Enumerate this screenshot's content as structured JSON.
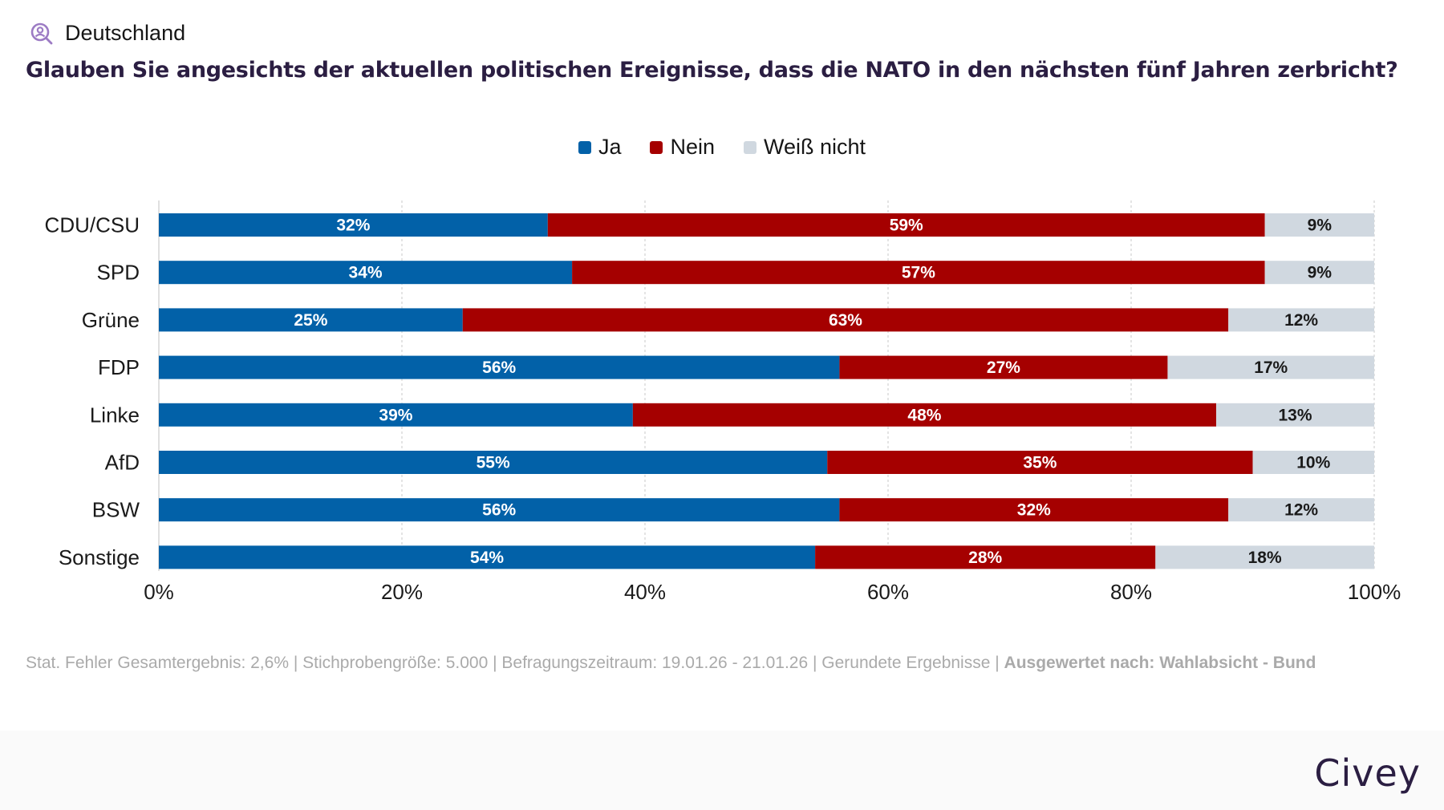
{
  "header": {
    "region_label": "Deutschland",
    "region_icon": "user-search-icon",
    "question": "Glauben Sie angesichts der aktuellen politischen Ereignisse, dass die NATO in den nächsten fünf Jahren zerbricht?"
  },
  "legend": [
    {
      "label": "Ja",
      "color": "#0261a8"
    },
    {
      "label": "Nein",
      "color": "#a50000"
    },
    {
      "label": "Weiß nicht",
      "color": "#d0d8e0"
    }
  ],
  "chart_data": {
    "type": "bar",
    "orientation": "horizontal",
    "stacked": true,
    "title": "Glauben Sie angesichts der aktuellen politischen Ereignisse, dass die NATO in den nächsten fünf Jahren zerbricht?",
    "xlabel": "",
    "ylabel": "",
    "categories": [
      "CDU/CSU",
      "SPD",
      "Grüne",
      "FDP",
      "Linke",
      "AfD",
      "BSW",
      "Sonstige"
    ],
    "series": [
      {
        "name": "Ja",
        "color": "#0261a8",
        "label_color": "#ffffff",
        "values": [
          32,
          34,
          25,
          56,
          39,
          55,
          56,
          54
        ]
      },
      {
        "name": "Nein",
        "color": "#a50000",
        "label_color": "#ffffff",
        "values": [
          59,
          57,
          63,
          27,
          48,
          35,
          32,
          28
        ]
      },
      {
        "name": "Weiß nicht",
        "color": "#d0d8e0",
        "label_color": "#1a1a1a",
        "values": [
          9,
          9,
          12,
          17,
          13,
          10,
          12,
          18
        ]
      }
    ],
    "xlim": [
      0,
      100
    ],
    "xticks": [
      0,
      20,
      40,
      60,
      80,
      100
    ],
    "xtick_labels": [
      "0%",
      "20%",
      "40%",
      "60%",
      "80%",
      "100%"
    ],
    "value_suffix": "%",
    "grid": true,
    "legend_position": "top-center"
  },
  "footnote": {
    "text": "Stat. Fehler Gesamtergebnis: 2,6% | Stichprobengröße: 5.000 | Befragungszeitraum: 19.01.26 - 21.01.26 | Gerundete Ergebnisse | ",
    "bold": "Ausgewertet nach: Wahlabsicht - Bund"
  },
  "footer": {
    "logo": "Civey"
  }
}
